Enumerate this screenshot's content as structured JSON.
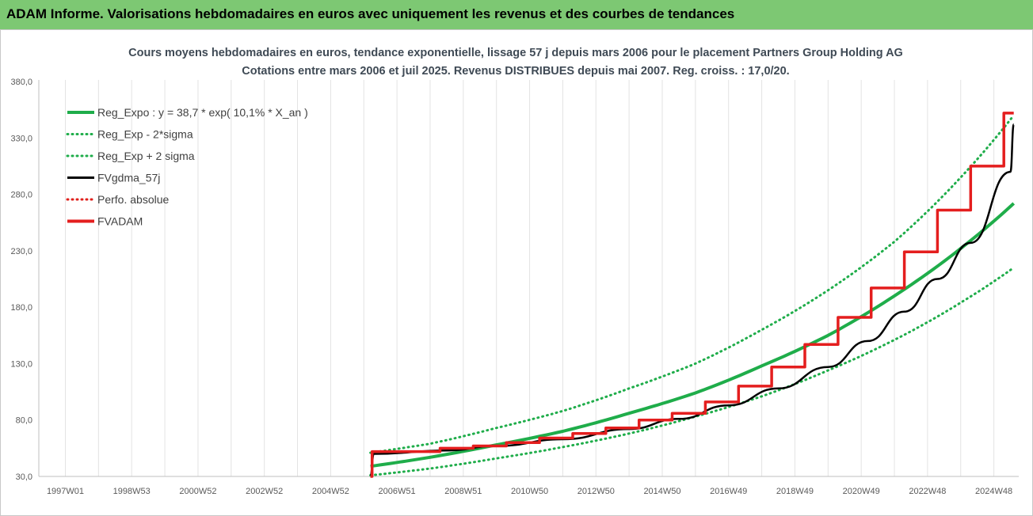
{
  "banner": {
    "title": "ADAM Informe. Valorisations hebdomadaires en euros avec uniquement les revenus et des courbes de tendances"
  },
  "chart_data": {
    "type": "line",
    "title_lines": [
      "Cours moyens hebdomadaires en euros, tendance exponentielle, lissage 57 j depuis mars 2006 pour le placement Partners Group Holding AG",
      "Cotations entre mars 2006 et juil 2025. Revenus DISTRIBUES depuis mai 2007.  Reg. croiss. : 17,0/20."
    ],
    "x_tick_labels": [
      "1997W01",
      "1998W53",
      "2000W52",
      "2002W52",
      "2004W52",
      "2006W51",
      "2008W51",
      "2010W50",
      "2012W50",
      "2014W50",
      "2016W49",
      "2018W49",
      "2020W49",
      "2022W48",
      "2024W48"
    ],
    "x_tick_years": [
      1997.0,
      1999.0,
      2001.0,
      2003.0,
      2005.0,
      2007.0,
      2009.0,
      2011.0,
      2013.0,
      2015.0,
      2017.0,
      2019.0,
      2021.0,
      2023.0,
      2025.0
    ],
    "xlim": [
      1996.2,
      2025.75
    ],
    "ylim": [
      30,
      380
    ],
    "y_ticks": [
      30,
      80,
      130,
      180,
      230,
      280,
      330,
      380
    ],
    "y_tick_labels": [
      "30,0",
      "80,0",
      "130,0",
      "180,0",
      "230,0",
      "280,0",
      "330,0",
      "380,0"
    ],
    "grid": "vertical",
    "legend_position": "top-left",
    "series": [
      {
        "name": "Reg_Expo : y = 38,7 * exp( 10,1% *  X_an )",
        "color": "#1fad4a",
        "style": "solid-thick",
        "x": [
          2006.2,
          2008,
          2010,
          2012,
          2014,
          2016,
          2018,
          2020,
          2022,
          2024,
          2025.6
        ],
        "y": [
          39,
          47,
          58,
          70,
          86,
          104,
          128,
          155,
          190,
          232,
          272
        ]
      },
      {
        "name": "Reg_Exp - 2*sigma",
        "color": "#1fad4a",
        "style": "dotted",
        "x": [
          2006.2,
          2008,
          2010,
          2012,
          2014,
          2016,
          2018,
          2020,
          2022,
          2024,
          2025.6
        ],
        "y": [
          31,
          37,
          46,
          56,
          68,
          83,
          101,
          124,
          151,
          184,
          215
        ]
      },
      {
        "name": "Reg_Exp + 2 sigma",
        "color": "#1fad4a",
        "style": "dotted",
        "x": [
          2006.2,
          2008,
          2010,
          2012,
          2014,
          2016,
          2018,
          2020,
          2022,
          2024,
          2025.6
        ],
        "y": [
          51,
          59,
          73,
          88,
          108,
          130,
          160,
          195,
          238,
          295,
          350
        ]
      },
      {
        "name": "FVgdma_57j",
        "color": "#000000",
        "style": "solid",
        "x": [
          2006.2,
          2006.3,
          2008.5,
          2010.0,
          2012.0,
          2014.0,
          2015.5,
          2017.0,
          2018.5,
          2020.0,
          2021.2,
          2022.3,
          2023.3,
          2024.3,
          2025.5,
          2025.6
        ],
        "y": [
          30,
          50,
          53,
          57,
          63,
          72,
          81,
          93,
          108,
          127,
          150,
          176,
          205,
          237,
          300,
          342
        ]
      },
      {
        "name": "Perfo. absolue",
        "color": "#e0201c",
        "style": "dotted",
        "x": [],
        "y": []
      },
      {
        "name": "FVADAM",
        "color": "#e41e1e",
        "style": "step",
        "x": [
          2006.2,
          2006.25,
          2008.3,
          2009.3,
          2010.3,
          2011.3,
          2012.3,
          2013.3,
          2014.3,
          2015.3,
          2016.3,
          2017.3,
          2018.3,
          2019.3,
          2020.3,
          2021.3,
          2022.3,
          2023.3,
          2024.3,
          2025.3,
          2025.6
        ],
        "y": [
          30,
          52,
          55,
          57,
          60,
          64,
          68,
          73,
          80,
          86,
          96,
          110,
          127,
          147,
          171,
          197,
          229,
          266,
          305,
          352,
          352
        ]
      }
    ]
  }
}
